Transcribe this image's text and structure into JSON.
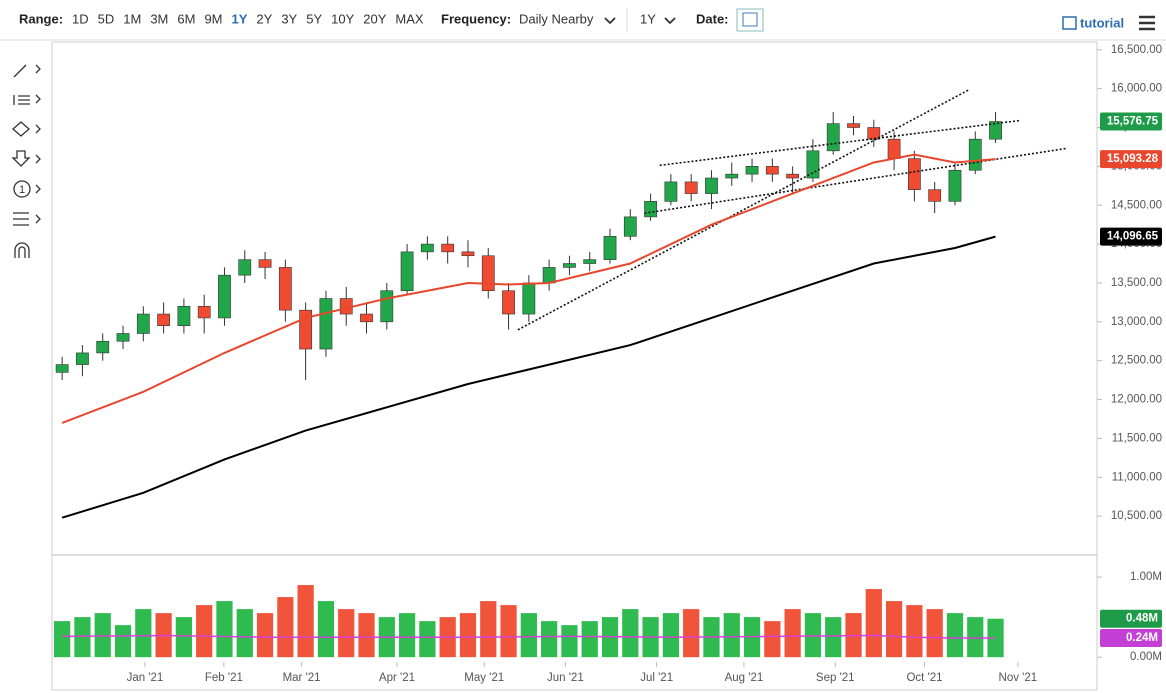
{
  "toolbar": {
    "range_label": "Range:",
    "ranges": [
      "1D",
      "5D",
      "1M",
      "3M",
      "6M",
      "9M",
      "1Y",
      "2Y",
      "3Y",
      "5Y",
      "10Y",
      "20Y",
      "MAX"
    ],
    "active_range": "1Y",
    "frequency_label": "Frequency:",
    "frequency": "Daily Nearby",
    "period": "1Y",
    "date_label": "Date:",
    "tutorial": "tutorial"
  },
  "chart_data": [
    {
      "type": "candlestick",
      "x": [
        0,
        1,
        2,
        3,
        4,
        5,
        6,
        7,
        8,
        9,
        10,
        11,
        12,
        13,
        14,
        15,
        16,
        17,
        18,
        19,
        20,
        21,
        22,
        23,
        24,
        25,
        26,
        27,
        28,
        29,
        30,
        31,
        32,
        33,
        34,
        35,
        36,
        37,
        38,
        39,
        40,
        41,
        42,
        43,
        44,
        45,
        46
      ],
      "open": [
        12350,
        12450,
        12600,
        12750,
        12850,
        13100,
        12950,
        13200,
        13050,
        13600,
        13800,
        13700,
        13150,
        12650,
        13300,
        13100,
        13000,
        13400,
        13900,
        14000,
        13900,
        13850,
        13400,
        13100,
        13500,
        13700,
        13750,
        13800,
        14100,
        14350,
        14550,
        14800,
        14650,
        14850,
        14900,
        15000,
        14900,
        14850,
        15200,
        15550,
        15500,
        15350,
        15100,
        14700,
        14550,
        14950,
        15350
      ],
      "high": [
        12550,
        12700,
        12850,
        12950,
        13200,
        13250,
        13300,
        13350,
        13700,
        13920,
        13900,
        13800,
        13250,
        13400,
        13450,
        13250,
        13500,
        14000,
        14100,
        14100,
        14050,
        13950,
        13500,
        13600,
        13800,
        13850,
        13900,
        14200,
        14450,
        14650,
        14900,
        14900,
        14950,
        15050,
        15100,
        15100,
        15000,
        15350,
        15700,
        15650,
        15600,
        15450,
        15200,
        14800,
        15050,
        15450,
        15700
      ],
      "low": [
        12250,
        12300,
        12500,
        12650,
        12750,
        12850,
        12850,
        12850,
        12950,
        13500,
        13550,
        13000,
        12250,
        12550,
        12950,
        12850,
        12900,
        13350,
        13800,
        13750,
        13700,
        13300,
        12900,
        13000,
        13400,
        13600,
        13650,
        13750,
        14050,
        14300,
        14500,
        14550,
        14450,
        14750,
        14800,
        14800,
        14650,
        14800,
        15150,
        15400,
        15250,
        14950,
        14550,
        14400,
        14500,
        14900,
        15300
      ],
      "close": [
        12450,
        12600,
        12750,
        12850,
        13100,
        12950,
        13200,
        13050,
        13600,
        13800,
        13700,
        13150,
        12650,
        13300,
        13100,
        13000,
        13400,
        13900,
        14000,
        13900,
        13850,
        13400,
        13100,
        13500,
        13700,
        13750,
        13800,
        14100,
        14350,
        14550,
        14800,
        14650,
        14850,
        14900,
        15000,
        14900,
        14850,
        15200,
        15550,
        15500,
        15350,
        15100,
        14700,
        14550,
        14950,
        15350,
        15576.75
      ],
      "up_color": "#22a64a",
      "down_color": "#ef4b33",
      "xlim": [
        -0.5,
        51
      ],
      "xticks": [
        {
          "value": 4.08,
          "label": "Jan '21"
        },
        {
          "value": 7.97,
          "label": "Feb '21"
        },
        {
          "value": 11.8,
          "label": "Mar '21"
        },
        {
          "value": 16.5,
          "label": "Apr '21"
        },
        {
          "value": 20.8,
          "label": "May '21"
        },
        {
          "value": 24.8,
          "label": "Jun '21"
        },
        {
          "value": 29.3,
          "label": "Jul '21"
        },
        {
          "value": 33.6,
          "label": "Aug '21"
        },
        {
          "value": 38.1,
          "label": "Sep '21"
        },
        {
          "value": 42.5,
          "label": "Oct '21"
        },
        {
          "value": 47.1,
          "label": "Nov '21"
        }
      ],
      "ylim": [
        10000,
        16600
      ],
      "yticks": [
        {
          "value": 10500,
          "label": "10,500.00"
        },
        {
          "value": 11000,
          "label": "11,000.00"
        },
        {
          "value": 11500,
          "label": "11,500.00"
        },
        {
          "value": 12000,
          "label": "12,000.00"
        },
        {
          "value": 12500,
          "label": "12,500.00"
        },
        {
          "value": 13000,
          "label": "13,000.00"
        },
        {
          "value": 13500,
          "label": "13,500.00"
        },
        {
          "value": 14000,
          "label": "14,000.00"
        },
        {
          "value": 14500,
          "label": "14,500.00"
        },
        {
          "value": 15000,
          "label": "15,000.00"
        },
        {
          "value": 15500,
          "label": "15,500.00"
        },
        {
          "value": 16000,
          "label": "16,000.00"
        },
        {
          "value": 16500,
          "label": "16,500.00"
        }
      ],
      "series": [
        {
          "color": "#e8472e",
          "x": [
            0,
            4,
            8,
            12,
            16,
            20,
            22,
            24,
            28,
            32,
            36,
            40,
            42,
            44,
            46
          ],
          "values": [
            11700,
            12100,
            12600,
            13050,
            13300,
            13500,
            13480,
            13500,
            13750,
            14250,
            14650,
            15050,
            15150,
            15050,
            15093.28
          ]
        },
        {
          "color": "#000000",
          "x": [
            0,
            4,
            8,
            12,
            16,
            20,
            24,
            28,
            32,
            36,
            40,
            44,
            46
          ],
          "values": [
            10480,
            10800,
            11230,
            11600,
            11900,
            12200,
            12450,
            12700,
            13050,
            13400,
            13750,
            13950,
            14096.65
          ]
        }
      ],
      "trendlines": [
        {
          "x": [
            22.46,
            44.7
          ],
          "values": [
            12897,
            15987
          ]
        },
        {
          "x": [
            29.45,
            47.2
          ],
          "values": [
            15013,
            15590
          ]
        },
        {
          "x": [
            28.7,
            49.5
          ],
          "values": [
            14397,
            15231
          ]
        }
      ],
      "badges": [
        {
          "value": 15576.75,
          "label": "15,576.75",
          "color": "#1e9b48"
        },
        {
          "value": 15093.28,
          "label": "15,093.28",
          "color": "#e8472e"
        },
        {
          "value": 14096.65,
          "label": "14,096.65",
          "color": "#000000"
        }
      ]
    },
    {
      "type": "bar",
      "x": [
        0,
        1,
        2,
        3,
        4,
        5,
        6,
        7,
        8,
        9,
        10,
        11,
        12,
        13,
        14,
        15,
        16,
        17,
        18,
        19,
        20,
        21,
        22,
        23,
        24,
        25,
        26,
        27,
        28,
        29,
        30,
        31,
        32,
        33,
        34,
        35,
        36,
        37,
        38,
        39,
        40,
        41,
        42,
        43,
        44,
        45,
        46
      ],
      "values": [
        0.45,
        0.5,
        0.55,
        0.4,
        0.6,
        0.55,
        0.5,
        0.65,
        0.7,
        0.6,
        0.55,
        0.75,
        0.9,
        0.7,
        0.6,
        0.55,
        0.5,
        0.55,
        0.45,
        0.5,
        0.55,
        0.7,
        0.65,
        0.55,
        0.45,
        0.4,
        0.45,
        0.5,
        0.6,
        0.5,
        0.55,
        0.6,
        0.5,
        0.55,
        0.5,
        0.45,
        0.6,
        0.55,
        0.5,
        0.55,
        0.85,
        0.7,
        0.65,
        0.6,
        0.55,
        0.5,
        0.48
      ],
      "up_color": "#2fbb4f",
      "down_color": "#f0543a",
      "ylim": [
        -0.06,
        1.25
      ],
      "yticks": [
        {
          "value": 0,
          "label": "0.00M"
        },
        {
          "value": 1,
          "label": "1.00M"
        }
      ],
      "series": [
        {
          "color": "#d63fd6",
          "x": [
            0,
            5,
            10,
            15,
            20,
            25,
            30,
            35,
            40,
            42,
            44,
            46
          ],
          "values": [
            0.26,
            0.27,
            0.25,
            0.25,
            0.25,
            0.26,
            0.25,
            0.26,
            0.27,
            0.25,
            0.24,
            0.24
          ]
        }
      ],
      "badges": [
        {
          "value": 0.48,
          "label": "0.48M",
          "color": "#1e9b48"
        },
        {
          "value": 0.24,
          "label": "0.24M",
          "color": "#c43fd6"
        }
      ]
    }
  ]
}
